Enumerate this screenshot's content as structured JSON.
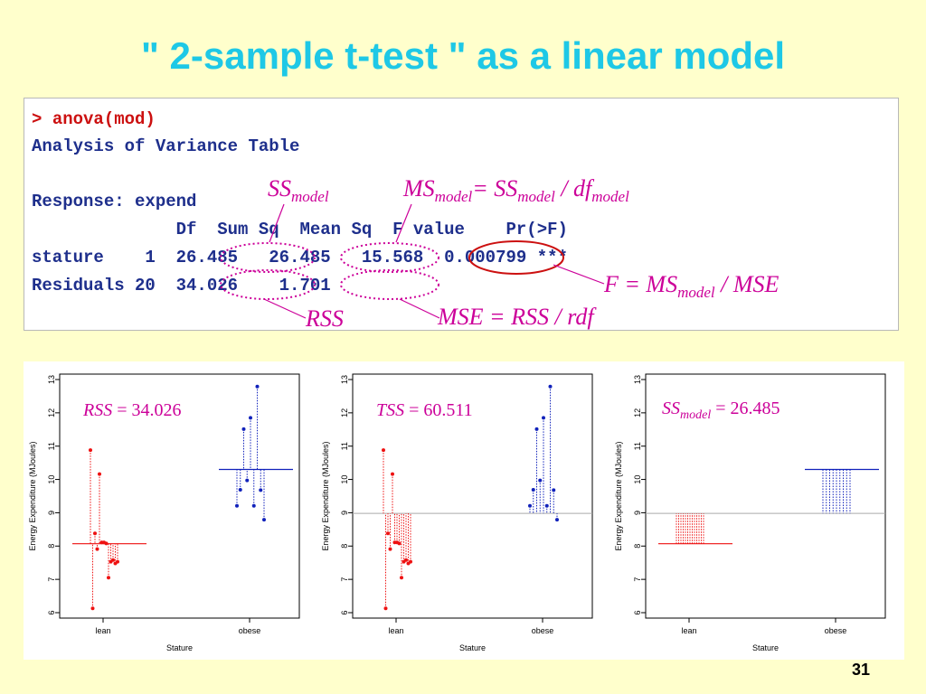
{
  "title": "\" 2-sample t-test \" as a linear model",
  "console": {
    "prompt": ">",
    "command": "anova(mod)",
    "line1": "Analysis of Variance Table",
    "line2": "Response: expend",
    "header": "              Df  Sum Sq  Mean Sq  F value    Pr(>F)",
    "row1": "stature    1  26.485   26.485   15.568  0.000799 ***",
    "row2": "Residuals 20  34.026    1.701"
  },
  "annotations": {
    "ss_model": {
      "main": "SS",
      "sub": "model"
    },
    "ms_model": {
      "a": "MS",
      "a_sub": "model",
      "eq": "= ",
      "b": "SS",
      "b_sub": "model",
      "slash": " / ",
      "c": "df",
      "c_sub": "model"
    },
    "f_formula": {
      "a": "F = MS",
      "a_sub": "model",
      "rest": " / MSE"
    },
    "rss": "RSS",
    "mse": "MSE = RSS  / rdf"
  },
  "colors": {
    "title": "#1ec8e6",
    "code": "#1e2f8c",
    "command": "#cc1010",
    "annotation": "#cc0099",
    "lean": "#ee1111",
    "obese": "#1122bb"
  },
  "plot_common": {
    "ylabel": "Energy Expenditure (MJoules)",
    "xlabel": "Stature",
    "categories": [
      "lean",
      "obese"
    ],
    "y_ticks": [
      "6",
      "7",
      "8",
      "9",
      "10",
      "11",
      "12",
      "13"
    ]
  },
  "chart_data": [
    {
      "type": "scatter",
      "label_var": "RSS",
      "label_value": " = 34.026",
      "mode": "residual",
      "ylim": [
        6,
        13
      ],
      "categories": [
        "lean",
        "obese"
      ],
      "overall_mean": 8.98,
      "group_means": [
        8.07,
        10.3
      ],
      "series": [
        {
          "category": "lean",
          "values": [
            10.88,
            6.13,
            8.38,
            7.91,
            10.16,
            8.11,
            8.11,
            8.08,
            7.05,
            7.53,
            7.58,
            7.48,
            7.53
          ]
        },
        {
          "category": "obese",
          "values": [
            9.21,
            9.69,
            11.51,
            9.97,
            11.85,
            9.21,
            12.79,
            9.68,
            8.79
          ]
        }
      ]
    },
    {
      "type": "scatter",
      "label_var": "TSS",
      "label_value": " = 60.511",
      "mode": "total",
      "ylim": [
        6,
        13
      ],
      "categories": [
        "lean",
        "obese"
      ],
      "overall_mean": 8.98,
      "group_means": [
        8.07,
        10.3
      ],
      "series": [
        {
          "category": "lean",
          "values": [
            10.88,
            6.13,
            8.38,
            7.91,
            10.16,
            8.11,
            8.11,
            8.08,
            7.05,
            7.53,
            7.58,
            7.48,
            7.53
          ]
        },
        {
          "category": "obese",
          "values": [
            9.21,
            9.69,
            11.51,
            9.97,
            11.85,
            9.21,
            12.79,
            9.68,
            8.79
          ]
        }
      ]
    },
    {
      "type": "scatter",
      "label_var": "SS",
      "label_sub": "model",
      "label_value": " = 26.485",
      "mode": "model",
      "ylim": [
        6,
        13
      ],
      "categories": [
        "lean",
        "obese"
      ],
      "overall_mean": 8.98,
      "group_means": [
        8.07,
        10.3
      ],
      "series": [
        {
          "category": "lean",
          "values": [
            10.88,
            6.13,
            8.38,
            7.91,
            10.16,
            8.11,
            8.11,
            8.08,
            7.05,
            7.53,
            7.58,
            7.48,
            7.53
          ]
        },
        {
          "category": "obese",
          "values": [
            9.21,
            9.69,
            11.51,
            9.97,
            11.85,
            9.21,
            12.79,
            9.68,
            8.79
          ]
        }
      ]
    }
  ],
  "slide_number": "31"
}
